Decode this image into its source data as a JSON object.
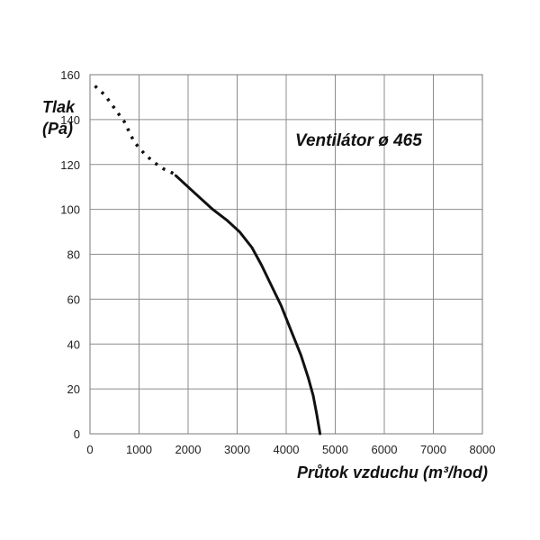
{
  "chart_data": {
    "type": "line",
    "title": "",
    "annotation": "Ventilátor ø 465",
    "xlabel": "Průtok vzduchu (m³/hod)",
    "ylabel_line1": "Tlak",
    "ylabel_line2": "(Pa)",
    "xlim": [
      0,
      8000
    ],
    "ylim": [
      0,
      160
    ],
    "xticks": [
      0,
      1000,
      2000,
      3000,
      4000,
      5000,
      6000,
      7000,
      8000
    ],
    "yticks": [
      0,
      20,
      40,
      60,
      80,
      100,
      120,
      140,
      160
    ],
    "grid": true,
    "series": [
      {
        "style": "dotted",
        "color": "#111111",
        "x": [
          100,
          300,
          500,
          700,
          900,
          1100,
          1300,
          1500,
          1700
        ],
        "y": [
          155,
          151,
          145,
          139,
          130,
          125,
          121,
          118,
          116
        ]
      },
      {
        "style": "solid",
        "color": "#111111",
        "x": [
          1750,
          2100,
          2500,
          2800,
          3050,
          3300,
          3500,
          3700,
          3900,
          4100,
          4300,
          4450,
          4550,
          4620,
          4690
        ],
        "y": [
          115,
          108,
          100,
          95,
          90,
          83,
          75,
          66,
          57,
          46,
          35,
          25,
          17,
          9,
          0
        ]
      }
    ]
  }
}
